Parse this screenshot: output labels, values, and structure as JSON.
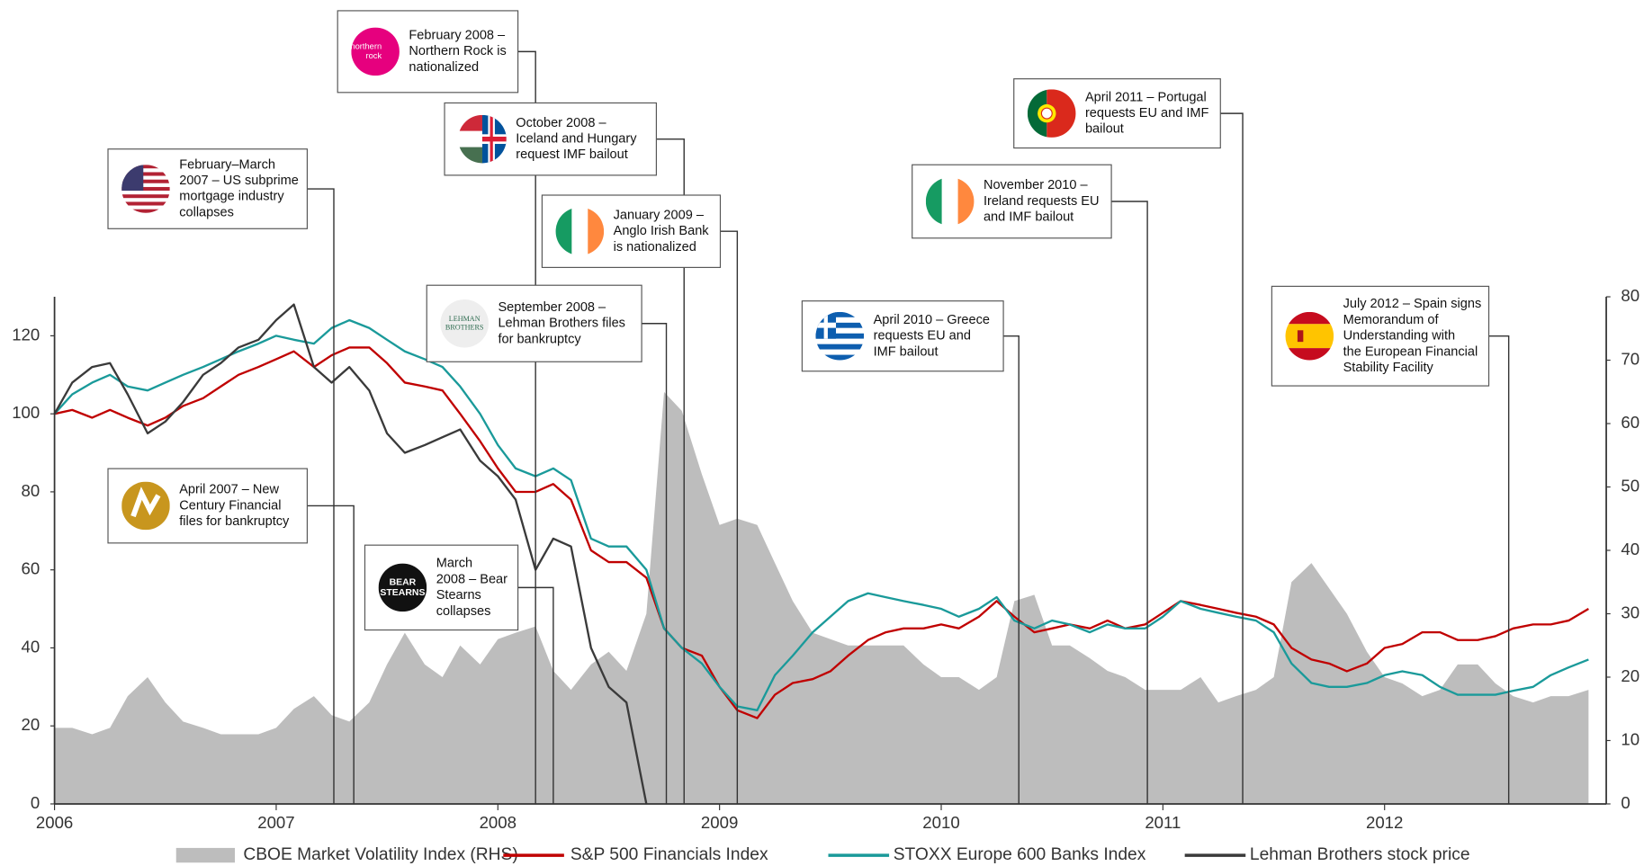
{
  "chart_data": {
    "type": "line",
    "x": [
      2006,
      2006.08,
      2006.17,
      2006.25,
      2006.33,
      2006.42,
      2006.5,
      2006.58,
      2006.67,
      2006.75,
      2006.83,
      2006.92,
      2007,
      2007.08,
      2007.17,
      2007.25,
      2007.33,
      2007.42,
      2007.5,
      2007.58,
      2007.67,
      2007.75,
      2007.83,
      2007.92,
      2008,
      2008.08,
      2008.17,
      2008.25,
      2008.33,
      2008.42,
      2008.5,
      2008.58,
      2008.67,
      2008.75,
      2008.83,
      2008.92,
      2009,
      2009.08,
      2009.17,
      2009.25,
      2009.33,
      2009.42,
      2009.5,
      2009.58,
      2009.67,
      2009.75,
      2009.83,
      2009.92,
      2010,
      2010.08,
      2010.17,
      2010.25,
      2010.33,
      2010.42,
      2010.5,
      2010.58,
      2010.67,
      2010.75,
      2010.83,
      2010.92,
      2011,
      2011.08,
      2011.17,
      2011.25,
      2011.33,
      2011.42,
      2011.5,
      2011.58,
      2011.67,
      2011.75,
      2011.83,
      2011.92,
      2012,
      2012.08,
      2012.17,
      2012.25,
      2012.33,
      2012.42,
      2012.5,
      2012.58,
      2012.67,
      2012.75,
      2012.83,
      2012.92
    ],
    "series": [
      {
        "name": "CBOE Market Volatility Index (RHS)",
        "color": "#bdbdbd",
        "kind": "area",
        "axis": "y2",
        "values": [
          12,
          12,
          11,
          12,
          17,
          20,
          16,
          13,
          12,
          11,
          11,
          11,
          12,
          15,
          17,
          14,
          13,
          16,
          22,
          27,
          22,
          20,
          25,
          22,
          26,
          27,
          28,
          21,
          18,
          22,
          24,
          21,
          30,
          65,
          62,
          52,
          44,
          45,
          44,
          38,
          32,
          27,
          26,
          25,
          25,
          25,
          25,
          22,
          20,
          20,
          18,
          20,
          32,
          33,
          25,
          25,
          23,
          21,
          20,
          18,
          18,
          18,
          20,
          16,
          17,
          18,
          20,
          35,
          38,
          34,
          30,
          24,
          20,
          19,
          17,
          18,
          22,
          22,
          19,
          17,
          16,
          17,
          17,
          18
        ]
      },
      {
        "name": "S&P 500 Financials Index",
        "color": "#c00000",
        "kind": "line",
        "values": [
          100,
          101,
          99,
          101,
          99,
          97,
          99,
          102,
          104,
          107,
          110,
          112,
          114,
          116,
          112,
          115,
          117,
          117,
          113,
          108,
          107,
          106,
          100,
          93,
          86,
          80,
          80,
          82,
          78,
          65,
          62,
          62,
          58,
          45,
          40,
          38,
          30,
          24,
          22,
          28,
          31,
          32,
          34,
          38,
          42,
          44,
          45,
          45,
          46,
          45,
          48,
          52,
          48,
          44,
          45,
          46,
          45,
          47,
          45,
          46,
          49,
          52,
          51,
          50,
          49,
          48,
          46,
          40,
          37,
          36,
          34,
          36,
          40,
          41,
          44,
          44,
          42,
          42,
          43,
          45,
          46,
          46,
          47,
          50
        ]
      },
      {
        "name": "STOXX Europe 600 Banks Index",
        "color": "#1a9a9a",
        "kind": "line",
        "values": [
          100,
          105,
          108,
          110,
          107,
          106,
          108,
          110,
          112,
          114,
          116,
          118,
          120,
          119,
          118,
          122,
          124,
          122,
          119,
          116,
          114,
          112,
          107,
          100,
          92,
          86,
          84,
          86,
          83,
          68,
          66,
          66,
          60,
          45,
          40,
          36,
          30,
          25,
          24,
          33,
          38,
          44,
          48,
          52,
          54,
          53,
          52,
          51,
          50,
          48,
          50,
          53,
          47,
          45,
          47,
          46,
          44,
          46,
          45,
          45,
          48,
          52,
          50,
          49,
          48,
          47,
          44,
          36,
          31,
          30,
          30,
          31,
          33,
          34,
          33,
          30,
          28,
          28,
          28,
          29,
          30,
          33,
          35,
          37
        ]
      },
      {
        "name": "Lehman Brothers stock price",
        "color": "#3a3a3a",
        "kind": "line",
        "values": [
          100,
          108,
          112,
          113,
          105,
          95,
          98,
          103,
          110,
          113,
          117,
          119,
          124,
          128,
          112,
          108,
          112,
          106,
          95,
          90,
          92,
          94,
          96,
          88,
          84,
          78,
          60,
          68,
          66,
          40,
          30,
          26,
          0,
          null,
          null,
          null,
          null,
          null,
          null,
          null,
          null,
          null,
          null,
          null,
          null,
          null,
          null,
          null,
          null,
          null,
          null,
          null,
          null,
          null,
          null,
          null,
          null,
          null,
          null,
          null,
          null,
          null,
          null,
          null,
          null,
          null,
          null,
          null,
          null,
          null,
          null,
          null,
          null,
          null,
          null,
          null,
          null,
          null,
          null,
          null,
          null,
          null,
          null,
          null
        ]
      }
    ],
    "xlim": [
      2006,
      2013
    ],
    "xticks": [
      2006,
      2007,
      2008,
      2009,
      2010,
      2011,
      2012
    ],
    "ylim": [
      0,
      130
    ],
    "yticks": [
      0,
      20,
      40,
      60,
      80,
      100,
      120
    ],
    "y2lim": [
      0,
      80
    ],
    "y2ticks": [
      0,
      10,
      20,
      30,
      40,
      50,
      60,
      70,
      80
    ],
    "legend": "bottom",
    "annotations": [
      {
        "x": 2008.17,
        "lines": [
          "February 2008 –",
          "Northern Rock is",
          "nationalized"
        ],
        "logo": [
          "northern",
          "rock"
        ]
      },
      {
        "x": 2008.84,
        "lines": [
          "October 2008 –",
          "Iceland and Hungary",
          "request IMF bailout"
        ]
      },
      {
        "x": 2007.26,
        "lines": [
          "February–March",
          "2007 – US subprime",
          "mortgage industry",
          "collapses"
        ]
      },
      {
        "x": 2009.08,
        "lines": [
          "January 2009 –",
          "Anglo Irish Bank",
          "is nationalized"
        ]
      },
      {
        "x": 2008.76,
        "lines": [
          "September 2008 –",
          "Lehman Brothers files",
          "for bankruptcy"
        ],
        "logo": [
          "LEHMAN",
          "BROTHERS"
        ]
      },
      {
        "x": 2007.35,
        "lines": [
          "April 2007 – New",
          "Century Financial",
          "files for bankruptcy"
        ]
      },
      {
        "x": 2008.25,
        "lines": [
          "March",
          "2008 – Bear",
          "Stearns",
          "collapses"
        ],
        "logo": [
          "BEAR",
          "STEARNS"
        ]
      },
      {
        "x": 2010.35,
        "lines": [
          "April 2010 – Greece",
          "requests EU and",
          "IMF bailout"
        ]
      },
      {
        "x": 2010.93,
        "lines": [
          "November 2010 –",
          "Ireland requests EU",
          "and IMF bailout"
        ]
      },
      {
        "x": 2011.36,
        "lines": [
          "April 2011 – Portugal",
          "requests EU and IMF",
          "bailout"
        ]
      },
      {
        "x": 2012.56,
        "lines": [
          "July 2012 – Spain signs",
          "Memorandum of",
          "Understanding with",
          "the European Financial",
          "Stability Facility"
        ]
      }
    ]
  }
}
